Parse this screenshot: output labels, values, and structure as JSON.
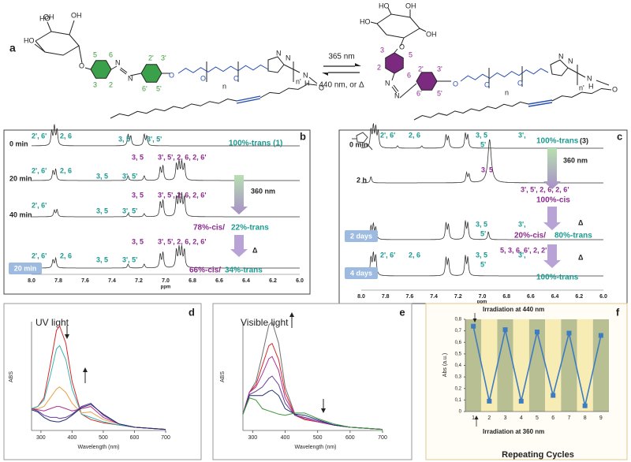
{
  "panel_a": {
    "label": "a",
    "forward": "365 nm",
    "reverse": "440 nm, or Δ",
    "left_labels": [
      "HO",
      "OH",
      "HO",
      "OH",
      "O",
      "5",
      "6",
      "3",
      "2",
      "N",
      "N",
      "2'",
      "3'",
      "6'",
      "5'",
      "O",
      "O",
      "O",
      "n",
      "N",
      "N",
      "n'",
      "N",
      "H",
      "O"
    ],
    "right_labels": [
      "HO",
      "OH",
      "HO",
      "OH",
      "O",
      "3",
      "2",
      "5",
      "6",
      "N",
      "N",
      "2'",
      "3'",
      "6'",
      "5'",
      "O",
      "O",
      "O",
      "n",
      "N",
      "N",
      "n'",
      "N",
      "H",
      "O"
    ]
  },
  "panel_b": {
    "label": "b",
    "times": [
      "0 min",
      "20 min",
      "40 min",
      "20 min"
    ],
    "peaks": [
      "2', 6'",
      "2, 6",
      "3, 5",
      "3', 5'",
      "2', 6'",
      "2, 6",
      "3, 5",
      "3', 5'",
      "3, 5",
      "3', 5', 2, 6, 2, 6'",
      "2', 6'",
      "3, 5",
      "3', 5'",
      "3, 5",
      "3', 5', 2, 6, 2, 6'",
      "2', 6'",
      "2, 6",
      "3, 5",
      "3', 5'",
      "3, 5",
      "3', 5', 2, 6, 2, 6'"
    ],
    "notes": [
      "100%-trans (1)",
      "360 nm",
      "78%-cis/",
      "22%-trans",
      "Δ",
      "66%-cis/",
      "34%-trans"
    ],
    "xticks": [
      "8.0",
      "7.8",
      "7.6",
      "7.4",
      "7.2",
      "7.0",
      "6.8",
      "6.6",
      "6.4",
      "6.2",
      "6.0"
    ],
    "xlabel": "ppm"
  },
  "panel_c": {
    "label": "c",
    "times": [
      "0 min",
      "2 h",
      "2 days",
      "4 days"
    ],
    "peaks": [
      "2', 6'",
      "2, 6",
      "3, 5",
      "5'",
      "3',",
      "3, 5",
      "3', 5', 2, 6, 2, 6'",
      "3, 5",
      "5'",
      "3',",
      "5, 3, 6, 6', 2, 2'",
      "2', 6'",
      "2, 6",
      "3, 5",
      "5'",
      "3',"
    ],
    "notes": [
      "100%-trans",
      "(3)",
      "360 nm",
      "100%-cis",
      "Δ",
      "20%-cis/",
      "80%-trans",
      "Δ",
      "100%-trans"
    ],
    "xticks": [
      "8.0",
      "7.8",
      "7.6",
      "7.4",
      "7.2",
      "7.0",
      "6.8",
      "6.6",
      "6.4",
      "6.2",
      "6.0"
    ],
    "xlabel": "ppm"
  },
  "chart_data": [
    {
      "type": "line",
      "panel_label": "d",
      "title": "UV light",
      "xlabel": "Wavelength (nm)",
      "ylabel": "ABS",
      "x": [
        270,
        290,
        310,
        330,
        350,
        360,
        380,
        400,
        430,
        460,
        500,
        550,
        600,
        650,
        700
      ],
      "xlim": [
        270,
        700
      ],
      "xticks": [
        300,
        400,
        500,
        600,
        700
      ],
      "ylim": [
        0,
        1
      ],
      "series": [
        {
          "color": "#d62728",
          "values": [
            0.2,
            0.22,
            0.3,
            0.6,
            0.92,
            0.96,
            0.8,
            0.45,
            0.15,
            0.1,
            0.07,
            0.05,
            0.03,
            0.02,
            0.01
          ]
        },
        {
          "color": "#3bb3b0",
          "values": [
            0.2,
            0.22,
            0.28,
            0.5,
            0.75,
            0.78,
            0.65,
            0.38,
            0.15,
            0.12,
            0.08,
            0.05,
            0.03,
            0.02,
            0.01
          ]
        },
        {
          "color": "#e8a040",
          "values": [
            0.2,
            0.2,
            0.22,
            0.3,
            0.38,
            0.4,
            0.35,
            0.25,
            0.16,
            0.17,
            0.1,
            0.06,
            0.03,
            0.02,
            0.01
          ]
        },
        {
          "color": "#b03090",
          "values": [
            0.2,
            0.19,
            0.18,
            0.2,
            0.22,
            0.22,
            0.2,
            0.18,
            0.2,
            0.22,
            0.12,
            0.06,
            0.03,
            0.02,
            0.01
          ]
        },
        {
          "color": "#6a3d9a",
          "values": [
            0.2,
            0.18,
            0.14,
            0.12,
            0.12,
            0.11,
            0.12,
            0.15,
            0.22,
            0.25,
            0.14,
            0.06,
            0.03,
            0.02,
            0.01
          ]
        },
        {
          "color": "#1f2f6f",
          "values": [
            0.19,
            0.17,
            0.12,
            0.09,
            0.08,
            0.08,
            0.1,
            0.14,
            0.21,
            0.24,
            0.15,
            0.06,
            0.03,
            0.02,
            0.01
          ]
        }
      ]
    },
    {
      "type": "line",
      "panel_label": "e",
      "title": "Visible light",
      "xlabel": "Wavelength (nm)",
      "ylabel": "ABS",
      "x": [
        270,
        290,
        310,
        330,
        350,
        360,
        380,
        400,
        430,
        460,
        500,
        550,
        600,
        650,
        700
      ],
      "xlim": [
        270,
        700
      ],
      "xticks": [
        300,
        400,
        500,
        600,
        700
      ],
      "ylim": [
        0,
        1
      ],
      "series": [
        {
          "color": "#707070",
          "values": [
            0.15,
            0.35,
            0.45,
            0.7,
            0.97,
            1.0,
            0.8,
            0.4,
            0.15,
            0.1,
            0.08,
            0.05,
            0.03,
            0.02,
            0.01
          ]
        },
        {
          "color": "#d62728",
          "values": [
            0.15,
            0.35,
            0.42,
            0.6,
            0.78,
            0.8,
            0.65,
            0.35,
            0.14,
            0.1,
            0.08,
            0.05,
            0.03,
            0.02,
            0.01
          ]
        },
        {
          "color": "#b03090",
          "values": [
            0.15,
            0.35,
            0.4,
            0.52,
            0.66,
            0.68,
            0.55,
            0.3,
            0.14,
            0.11,
            0.08,
            0.05,
            0.03,
            0.02,
            0.01
          ]
        },
        {
          "color": "#6a3d9a",
          "values": [
            0.15,
            0.33,
            0.36,
            0.4,
            0.48,
            0.5,
            0.42,
            0.25,
            0.14,
            0.12,
            0.09,
            0.05,
            0.03,
            0.02,
            0.01
          ]
        },
        {
          "color": "#1f2f6f",
          "values": [
            0.15,
            0.32,
            0.32,
            0.32,
            0.36,
            0.37,
            0.32,
            0.2,
            0.15,
            0.14,
            0.1,
            0.05,
            0.03,
            0.02,
            0.01
          ]
        },
        {
          "color": "#3a9a3a",
          "values": [
            0.15,
            0.3,
            0.28,
            0.2,
            0.18,
            0.17,
            0.15,
            0.14,
            0.16,
            0.16,
            0.11,
            0.06,
            0.03,
            0.02,
            0.01
          ]
        }
      ]
    },
    {
      "type": "line",
      "panel_label": "f",
      "xlabel": "Repeating Cycles",
      "ylabel": "Abs (a.u.)",
      "color": "#3e7cc1",
      "band_colors": [
        "#b7bf93",
        "#f8ecb5"
      ],
      "categories": [
        "1",
        "2",
        "3",
        "4",
        "5",
        "6",
        "7",
        "8",
        "9"
      ],
      "values": [
        0.74,
        0.09,
        0.71,
        0.09,
        0.69,
        0.14,
        0.68,
        0.05,
        0.66
      ],
      "ylim": [
        0,
        0.8
      ],
      "yticks": [
        0,
        {
          "value": 0.1,
          "label": "0,1"
        },
        {
          "value": 0.2,
          "label": "0,2"
        },
        {
          "value": 0.3,
          "label": "0,3"
        },
        {
          "value": 0.4,
          "label": "0,4"
        },
        {
          "value": 0.5,
          "label": "0,5"
        },
        {
          "value": 0.6,
          "label": "0,6"
        },
        {
          "value": 0.7,
          "label": "0,7"
        },
        {
          "value": 0.8,
          "label": "0,8"
        }
      ],
      "annotations": [
        "Irradiation at 440 nm",
        "Irradiation at 360 nm"
      ]
    }
  ]
}
